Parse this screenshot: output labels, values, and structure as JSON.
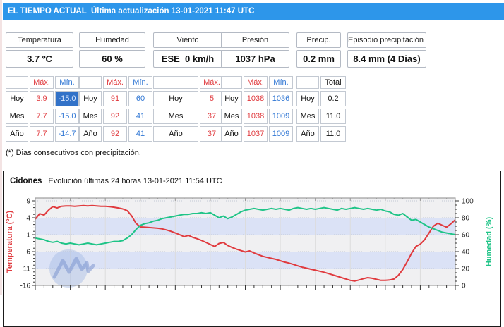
{
  "header": {
    "title": "EL TIEMPO ACTUAL  Última actualización 13-01-2021 11:47 UTC"
  },
  "summary": [
    {
      "label": "Temperatura",
      "value": "3.7 ºC"
    },
    {
      "label": "Humedad",
      "value": "60 %"
    },
    {
      "label": "Viento",
      "value": "ESE  0 km/h"
    },
    {
      "label": "Presión",
      "value": "1037 hPa"
    },
    {
      "label": "Precip.",
      "value": "0.2 mm"
    },
    {
      "label": "Episodio precipitación (*)",
      "value": "8.4 mm (4 Dias)"
    }
  ],
  "stats_tables": {
    "temperatura": {
      "columns": [
        "",
        "Máx.",
        "Mín."
      ],
      "rows": [
        [
          "Hoy",
          "3.9",
          "-15.0"
        ],
        [
          "Mes",
          "7.7",
          "-15.0"
        ],
        [
          "Año",
          "7.7",
          "-14.7"
        ]
      ],
      "highlighted_cell": "Hoy Mín."
    },
    "humedad": {
      "columns": [
        "",
        "Máx.",
        "Mín."
      ],
      "rows": [
        [
          "Hoy",
          "91",
          "60"
        ],
        [
          "Mes",
          "92",
          "41"
        ],
        [
          "Año",
          "92",
          "41"
        ]
      ]
    },
    "viento": {
      "columns": [
        "",
        "Máx."
      ],
      "rows": [
        [
          "Hoy",
          "5"
        ],
        [
          "Mes",
          "37"
        ],
        [
          "Año",
          "37"
        ]
      ]
    },
    "presion": {
      "columns": [
        "",
        "Máx.",
        "Mín."
      ],
      "rows": [
        [
          "Hoy",
          "1038",
          "1036"
        ],
        [
          "Mes",
          "1038",
          "1009"
        ],
        [
          "Año",
          "1037",
          "1009"
        ]
      ]
    },
    "precip": {
      "columns": [
        "",
        "Total"
      ],
      "rows": [
        [
          "Hoy",
          "0.2"
        ],
        [
          "Mes",
          "11.0"
        ],
        [
          "Año",
          "11.0"
        ]
      ]
    }
  },
  "footnote": "(*) Dias consecutivos con precipitación.",
  "chart": {
    "station": "Cidones",
    "subtitle": "Evolución últimas 24 horas 13-01-2021 11:54 UTC"
  },
  "chart_data": {
    "type": "line",
    "title": "Cidones Evolución últimas 24 horas 13-01-2021 11:54 UTC",
    "x_hours_span": 24,
    "x_axis": {
      "major_tick_hours": 2,
      "minor_tick_hours": 0.5,
      "labels_visible": false
    },
    "left_axis": {
      "label": "Temperatura (ºC)",
      "min": -16,
      "max": 9,
      "tick_step": 5,
      "minor_step": 1,
      "color": "#e03a3e"
    },
    "right_axis": {
      "label": "Humedad (%)",
      "min": 0,
      "max": 100,
      "tick_step": 20,
      "minor_step": 5,
      "color": "#1fc487"
    },
    "bands": {
      "interval_pct": 20,
      "colors": [
        "#f0f0f2",
        "#dbe2f6"
      ]
    },
    "grid": {
      "vertical": true,
      "band_edge_dotted": true
    },
    "series": [
      {
        "name": "Temperatura",
        "axis": "left",
        "color": "#e03a3e",
        "values": [
          3.6,
          5.2,
          4.8,
          6.2,
          7.3,
          6.9,
          7.4,
          7.5,
          7.5,
          7.4,
          7.5,
          7.6,
          7.5,
          7.6,
          7.5,
          7.4,
          7.4,
          7.3,
          7.1,
          6.9,
          6.6,
          6.1,
          4.6,
          2.4,
          1.3,
          1.2,
          1.1,
          1.0,
          0.9,
          0.7,
          0.4,
          0.0,
          -0.5,
          -1.0,
          -1.6,
          -1.2,
          -1.8,
          -2.2,
          -2.7,
          -3.3,
          -3.9,
          -4.5,
          -3.6,
          -3.3,
          -4.2,
          -4.8,
          -5.3,
          -5.7,
          -6.1,
          -5.8,
          -6.4,
          -6.9,
          -7.4,
          -7.7,
          -8.0,
          -8.3,
          -8.7,
          -9.1,
          -9.4,
          -9.8,
          -10.2,
          -10.6,
          -10.9,
          -11.2,
          -11.5,
          -11.8,
          -12.1,
          -12.5,
          -12.9,
          -13.3,
          -13.7,
          -14.1,
          -14.5,
          -14.7,
          -14.4,
          -14.0,
          -13.7,
          -13.9,
          -14.2,
          -14.5,
          -14.5,
          -14.4,
          -14.1,
          -13.0,
          -11.3,
          -9.0,
          -6.5,
          -4.5,
          -3.8,
          -2.5,
          -0.5,
          1.5,
          2.4,
          1.8,
          1.2,
          2.2,
          3.4
        ]
      },
      {
        "name": "Humedad",
        "axis": "right",
        "color": "#1fc487",
        "values": [
          56,
          55,
          54,
          52,
          51,
          52,
          50,
          49,
          50,
          49,
          48,
          49,
          50,
          49,
          48,
          49,
          50,
          51,
          52,
          52,
          53,
          56,
          60,
          66,
          71,
          73,
          74,
          76,
          77,
          79,
          80,
          81,
          82,
          83,
          84,
          84,
          85,
          85,
          86,
          85,
          86,
          83,
          80,
          82,
          79,
          81,
          84,
          87,
          89,
          90,
          91,
          90,
          89,
          90,
          91,
          90,
          91,
          90,
          89,
          91,
          92,
          91,
          90,
          91,
          90,
          91,
          92,
          91,
          90,
          89,
          91,
          90,
          91,
          92,
          91,
          90,
          91,
          90,
          89,
          90,
          88,
          87,
          84,
          83,
          85,
          81,
          77,
          78,
          75,
          72,
          69,
          67,
          65,
          63,
          62,
          61,
          60
        ]
      }
    ]
  }
}
